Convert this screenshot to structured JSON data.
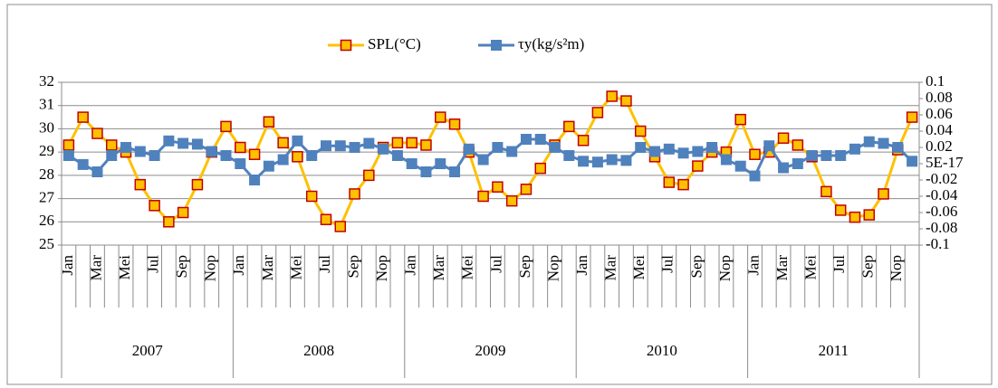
{
  "chart_data": {
    "type": "line",
    "categories": [
      "Jan",
      null,
      "Mar",
      null,
      "Mei",
      null,
      "Jul",
      null,
      "Sep",
      null,
      "Nop",
      null,
      "Jan",
      null,
      "Mar",
      null,
      "Mei",
      null,
      "Jul",
      null,
      "Sep",
      null,
      "Nop",
      null,
      "Jan",
      null,
      "Mar",
      null,
      "Mei",
      null,
      "Jul",
      null,
      "Sep",
      null,
      "Nop",
      null,
      "Jan",
      null,
      "Mar",
      null,
      "Mei",
      null,
      "Jul",
      null,
      "Sep",
      null,
      "Nop",
      null,
      "Jan",
      null,
      "Mar",
      null,
      "Mei",
      null,
      "Jul",
      null,
      "Sep",
      null,
      "Nop",
      null
    ],
    "category_groups": [
      "2007",
      "2008",
      "2009",
      "2010",
      "2011"
    ],
    "series": [
      {
        "name": "SPL(°C)",
        "color": "#ffc000",
        "marker_edge": "#c00000",
        "values": [
          29.3,
          30.5,
          29.8,
          29.3,
          29.0,
          27.6,
          26.7,
          26.0,
          26.4,
          27.6,
          29.0,
          30.1,
          29.2,
          28.9,
          30.3,
          29.4,
          28.8,
          27.1,
          26.1,
          25.8,
          27.2,
          28.0,
          29.2,
          29.4,
          29.4,
          29.3,
          30.5,
          30.2,
          29.0,
          27.1,
          27.5,
          26.9,
          27.4,
          28.3,
          29.3,
          30.1,
          29.5,
          30.7,
          31.4,
          31.2,
          29.9,
          28.8,
          27.7,
          27.6,
          28.4,
          29.0,
          29.0,
          30.4,
          28.9,
          29.0,
          29.6,
          29.3,
          28.8,
          27.3,
          26.5,
          26.2,
          26.3,
          27.2,
          29.1,
          30.5
        ]
      },
      {
        "name": "τy(kg/s²m)",
        "color": "#4f81bd",
        "axis": "y2",
        "values": [
          0.01,
          -0.001,
          -0.01,
          0.01,
          0.02,
          0.015,
          0.01,
          0.028,
          0.025,
          0.024,
          0.015,
          0.01,
          0.0,
          -0.02,
          -0.003,
          0.005,
          0.028,
          0.01,
          0.022,
          0.022,
          0.02,
          0.025,
          0.018,
          0.01,
          0.0,
          -0.01,
          0.0,
          -0.01,
          0.018,
          0.005,
          0.02,
          0.015,
          0.03,
          0.03,
          0.02,
          0.01,
          0.003,
          0.002,
          0.005,
          0.004,
          0.02,
          0.015,
          0.018,
          0.013,
          0.015,
          0.02,
          0.005,
          -0.003,
          -0.015,
          0.022,
          -0.005,
          0.0,
          0.01,
          0.01,
          0.01,
          0.018,
          0.027,
          0.025,
          0.02,
          0.003
        ]
      }
    ],
    "ylim": [
      25,
      32
    ],
    "yticks": [
      25,
      26,
      27,
      28,
      29,
      30,
      31,
      32
    ],
    "y2lim": [
      -0.1,
      0.1
    ],
    "y2ticks": [
      -0.1,
      -0.08,
      -0.06,
      -0.04,
      -0.02,
      {
        "value": 5e-17,
        "label": "5E-17"
      },
      0.02,
      0.04,
      0.06,
      0.08,
      0.1
    ],
    "grid": true,
    "legend": "top"
  }
}
